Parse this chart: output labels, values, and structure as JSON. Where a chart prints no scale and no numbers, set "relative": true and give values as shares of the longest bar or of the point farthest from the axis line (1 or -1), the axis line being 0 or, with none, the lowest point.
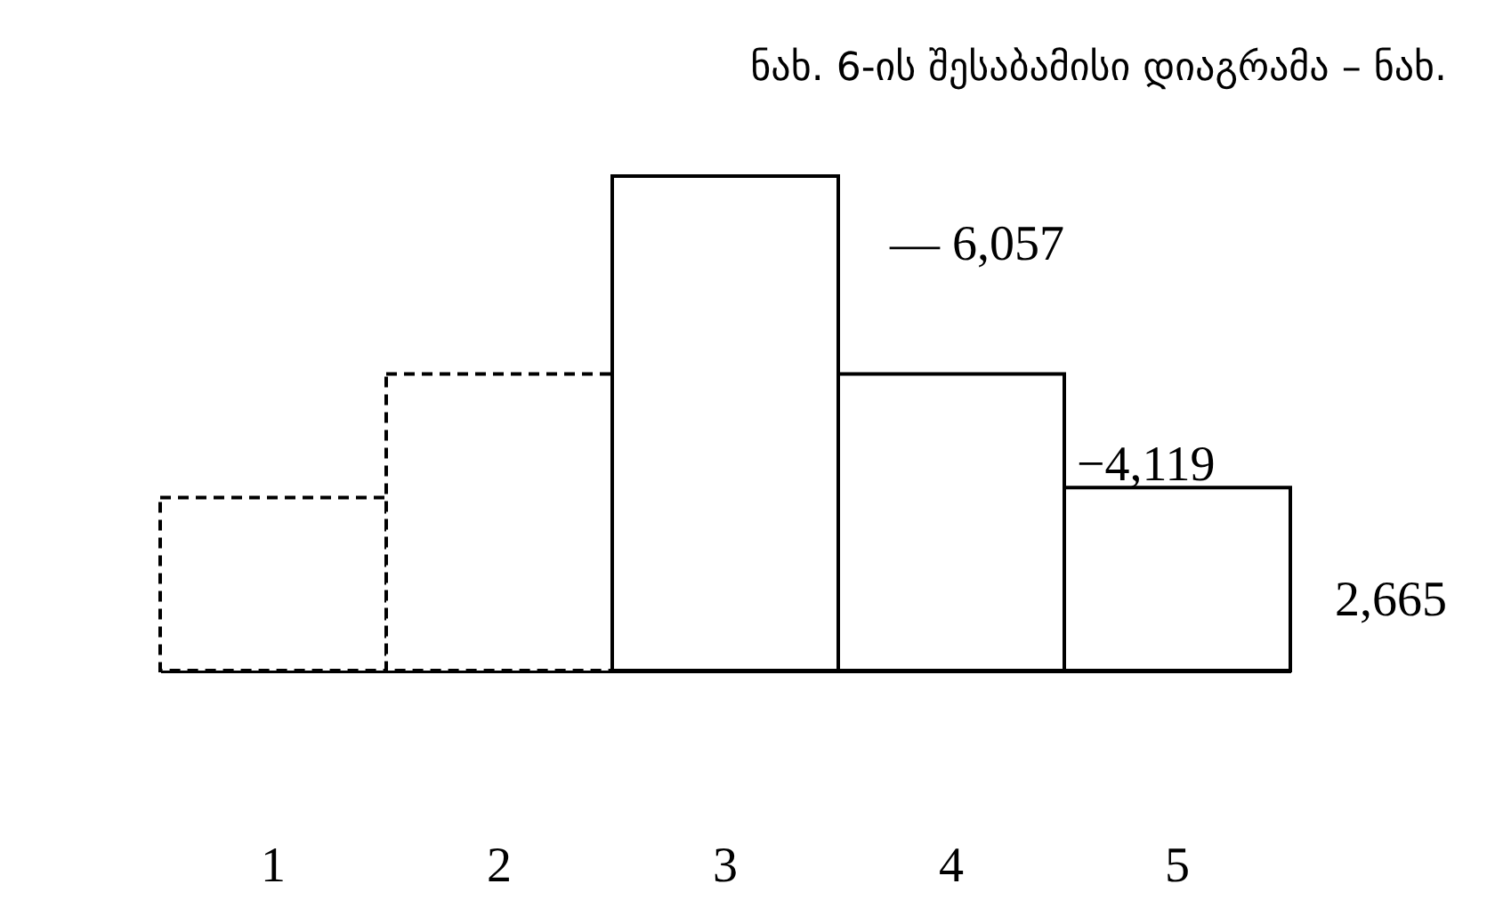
{
  "chart_data": {
    "type": "bar",
    "title": "ნახ. 6-ის შესაბამისი დიაგრამა – ნახ.",
    "relative": true,
    "categories": [
      "1",
      "2",
      "3",
      "4",
      "5"
    ],
    "series": [
      {
        "color": "#ffffff",
        "line_style": "dashed",
        "values": [
          0.35,
          0.6,
          null,
          null,
          null
        ]
      },
      {
        "color": "#ffffff",
        "line_style": "solid",
        "values": [
          null,
          null,
          1,
          0.6,
          0.37
        ]
      }
    ],
    "annotations": [
      "— 6,057",
      "−4,119",
      "2,665"
    ]
  }
}
